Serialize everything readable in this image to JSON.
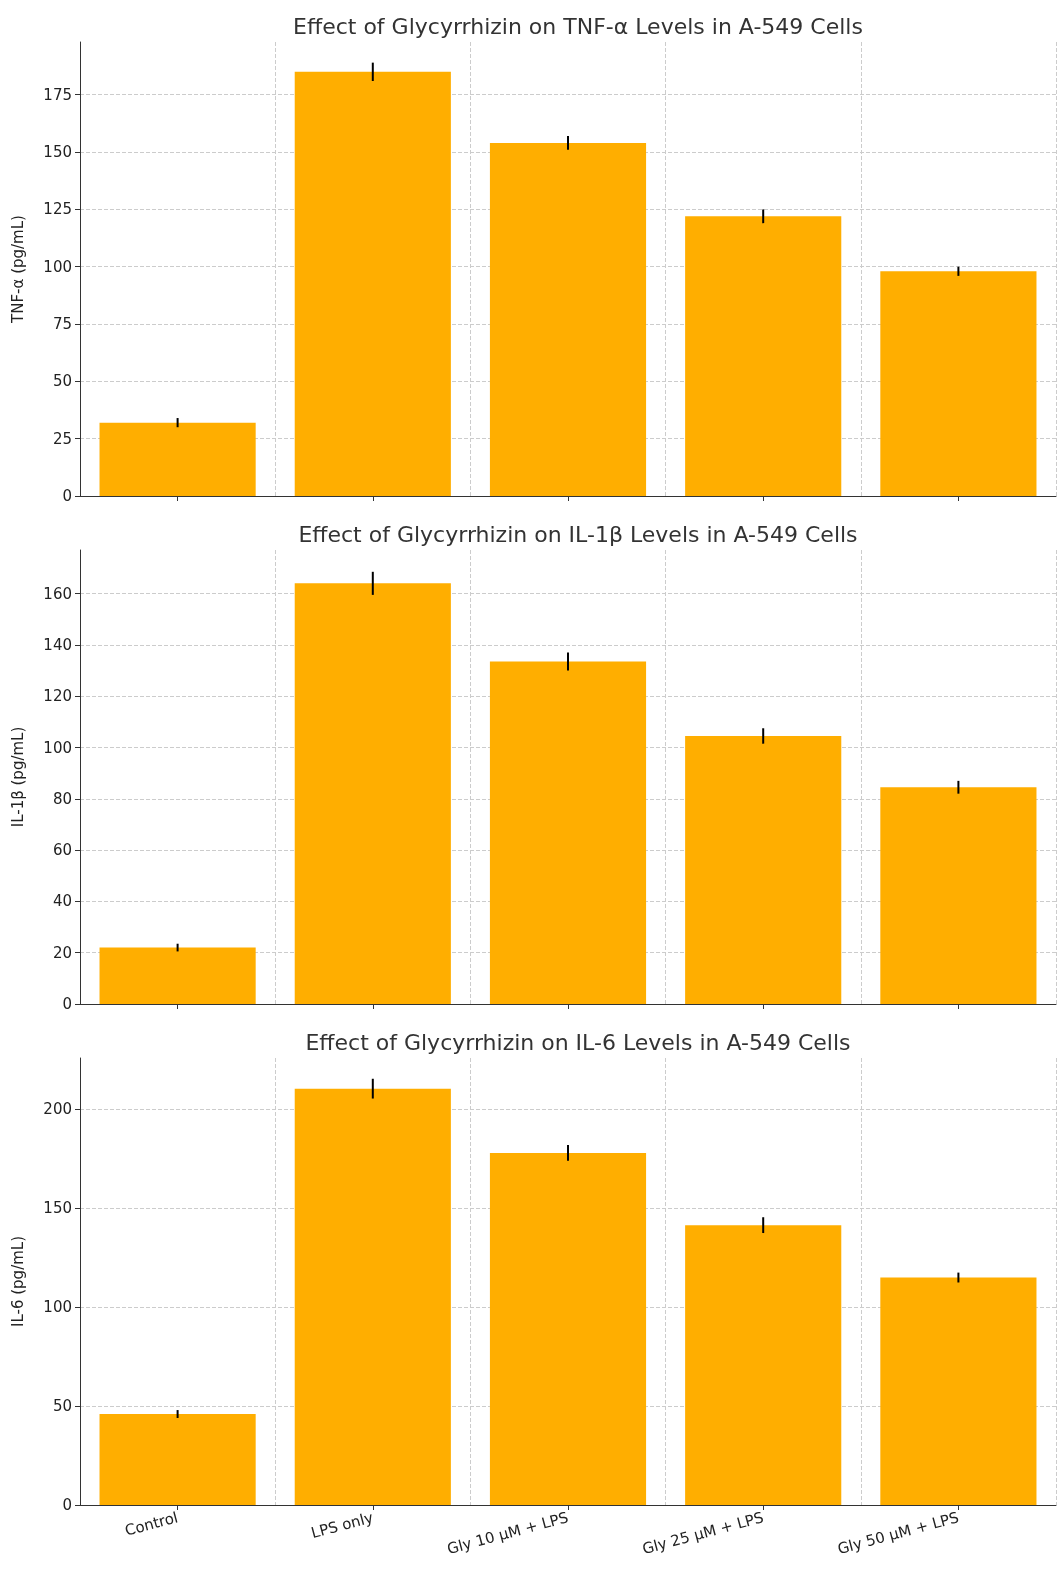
{
  "chart_data": [
    {
      "type": "bar",
      "title": "Effect of Glycyrrhizin on TNF-α Levels in A-549 Cells",
      "ylabel": "TNF-α (pg/mL)",
      "categories": [
        null,
        null,
        null,
        null,
        null
      ],
      "series": [
        {
          "color": "#ffae00",
          "values": [
            32,
            185,
            154,
            122,
            98
          ],
          "errors": [
            2,
            4,
            3,
            3,
            2
          ]
        }
      ],
      "ylim": [
        0,
        198
      ],
      "yticks": [
        0,
        25,
        50,
        75,
        100,
        125,
        150,
        175
      ],
      "grid": true,
      "tick_labels": "y"
    },
    {
      "type": "bar",
      "title": "Effect of Glycyrrhizin on IL-1β Levels in A-549 Cells",
      "ylabel": "IL-1β (pg/mL)",
      "categories": [
        null,
        null,
        null,
        null,
        null
      ],
      "series": [
        {
          "color": "#ffae00",
          "values": [
            22,
            164,
            133.5,
            104.5,
            84.5
          ],
          "errors": [
            1.5,
            4.5,
            3.5,
            3,
            2.5
          ]
        }
      ],
      "ylim": [
        0,
        177
      ],
      "yticks": [
        0,
        20,
        40,
        60,
        80,
        100,
        120,
        140,
        160
      ],
      "grid": true,
      "tick_labels": "y"
    },
    {
      "type": "bar",
      "title": "Effect of Glycyrrhizin on IL-6 Levels in A-549 Cells",
      "ylabel": "IL-6 (pg/mL)",
      "categories": [
        "Control",
        "LPS only",
        "Gly 10 μM + LPS",
        "Gly 25 μM + LPS",
        "Gly 50 μM + LPS"
      ],
      "series": [
        {
          "color": "#ffae00",
          "values": [
            46,
            210.5,
            178,
            141.5,
            115
          ],
          "errors": [
            2,
            5,
            4,
            4,
            2.5
          ]
        }
      ],
      "ylim": [
        0,
        226
      ],
      "yticks": [
        0,
        50,
        100,
        150,
        200
      ],
      "grid": true
    }
  ]
}
